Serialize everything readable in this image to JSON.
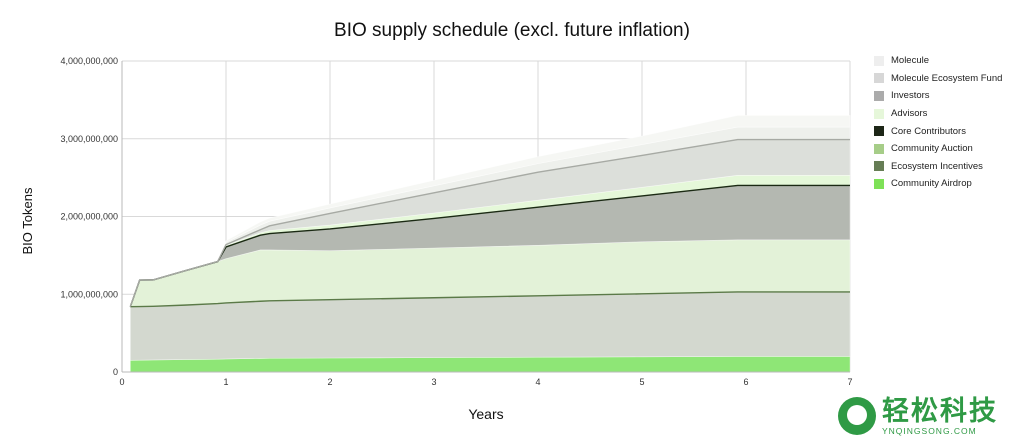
{
  "chart_data": {
    "type": "area",
    "stacked": true,
    "title": "BIO supply schedule (excl. future inflation)",
    "xlabel": "Years",
    "ylabel": "BIO Tokens",
    "xlim": [
      0,
      7
    ],
    "ylim": [
      0,
      4000000000
    ],
    "x_ticks": [
      "0",
      "1",
      "2",
      "3",
      "4",
      "5",
      "6",
      "7"
    ],
    "y_ticks": [
      "0",
      "1,000,000,000",
      "2,000,000,000",
      "3,000,000,000",
      "4,000,000,000"
    ],
    "x": [
      0.08,
      0.17,
      0.3,
      0.6,
      0.92,
      1.0,
      1.33,
      1.42,
      2,
      3,
      4,
      5,
      5.92,
      7
    ],
    "series": [
      {
        "name": "Community Airdrop",
        "color": "#8ee676",
        "values": [
          150000000,
          152000000,
          155000000,
          160000000,
          165000000,
          168000000,
          175000000,
          177000000,
          180000000,
          185000000,
          190000000,
          195000000,
          200000000,
          200000000
        ]
      },
      {
        "name": "Ecosystem Incentives",
        "color": "#d3d8cf",
        "values": [
          690000000,
          690000000,
          690000000,
          700000000,
          715000000,
          720000000,
          735000000,
          738000000,
          750000000,
          770000000,
          790000000,
          810000000,
          830000000,
          830000000
        ]
      },
      {
        "name": "Community Auction",
        "color": "#e3f2d8",
        "values": [
          0,
          340000000,
          340000000,
          440000000,
          540000000,
          570000000,
          660000000,
          655000000,
          630000000,
          640000000,
          650000000,
          670000000,
          670000000,
          670000000
        ]
      },
      {
        "name": "Core Contributors",
        "color": "#b4b8b1",
        "values": [
          0,
          0,
          0,
          0,
          0,
          150000000,
          190000000,
          210000000,
          280000000,
          380000000,
          490000000,
          590000000,
          700000000,
          700000000
        ]
      },
      {
        "name": "Advisors",
        "color": "#e5f8d9",
        "values": [
          0,
          0,
          0,
          0,
          0,
          20000000,
          30000000,
          40000000,
          50000000,
          70000000,
          90000000,
          110000000,
          130000000,
          130000000
        ]
      },
      {
        "name": "Investors",
        "color": "#dcdfda",
        "values": [
          0,
          0,
          0,
          0,
          0,
          10000000,
          40000000,
          60000000,
          150000000,
          260000000,
          360000000,
          410000000,
          460000000,
          460000000
        ]
      },
      {
        "name": "Molecule Ecosystem Fund",
        "color": "#eef0ec",
        "values": [
          0,
          0,
          0,
          0,
          0,
          30000000,
          60000000,
          60000000,
          70000000,
          90000000,
          110000000,
          140000000,
          160000000,
          160000000
        ]
      },
      {
        "name": "Molecule",
        "color": "#f6f7f4",
        "values": [
          0,
          0,
          0,
          0,
          0,
          20000000,
          40000000,
          40000000,
          50000000,
          70000000,
          90000000,
          110000000,
          150000000,
          150000000
        ]
      }
    ],
    "boundary_lines": [
      {
        "series": "Ecosystem Incentives",
        "color": "#5b7a48"
      },
      {
        "series": "Core Contributors",
        "color": "#1b2a14"
      },
      {
        "series": "Investors",
        "color": "#a7aaa4"
      }
    ],
    "legend": {
      "position": "right",
      "order": [
        "Molecule",
        "Molecule Ecosystem Fund",
        "Investors",
        "Advisors",
        "Core Contributors",
        "Community Auction",
        "Ecosystem Incentives",
        "Community Airdrop"
      ],
      "colors": [
        "#eeeeee",
        "#d7d7d7",
        "#ababab",
        "#e6f7da",
        "#1d2617",
        "#a6cd88",
        "#667d55",
        "#7ee157"
      ]
    },
    "grid": true
  },
  "watermark": {
    "cn": "轻松科技",
    "en": "YNQINGSONG.COM"
  }
}
